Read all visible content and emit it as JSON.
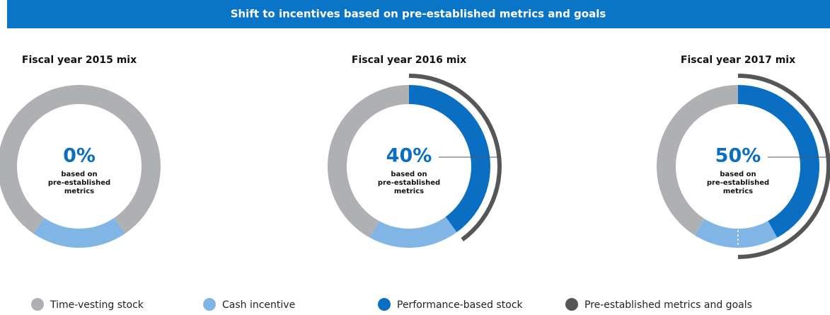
{
  "chart_data": {
    "type": "donut",
    "title": "Shift to incentives based on pre-established metrics and goals",
    "categories": [
      "Fiscal year 2015 mix",
      "Fiscal year 2016 mix",
      "Fiscal year 2017 mix"
    ],
    "center_note": [
      "based on",
      "pre-established",
      "metrics"
    ],
    "series": [
      {
        "name": "Time-vesting stock",
        "color": "#aeb0b3",
        "values": [
          81,
          42,
          41
        ]
      },
      {
        "name": "Cash incentive",
        "color": "#80b5e5",
        "values": [
          19,
          18,
          17
        ]
      },
      {
        "name": "Performance-based stock",
        "color": "#0a6fc2",
        "values": [
          0,
          40,
          42
        ]
      },
      {
        "name": "Pre-established metrics and goals",
        "color": "#545658",
        "values": [
          0,
          40,
          50
        ],
        "value_labels": [
          "0%",
          "40%",
          "50%"
        ]
      }
    ]
  }
}
